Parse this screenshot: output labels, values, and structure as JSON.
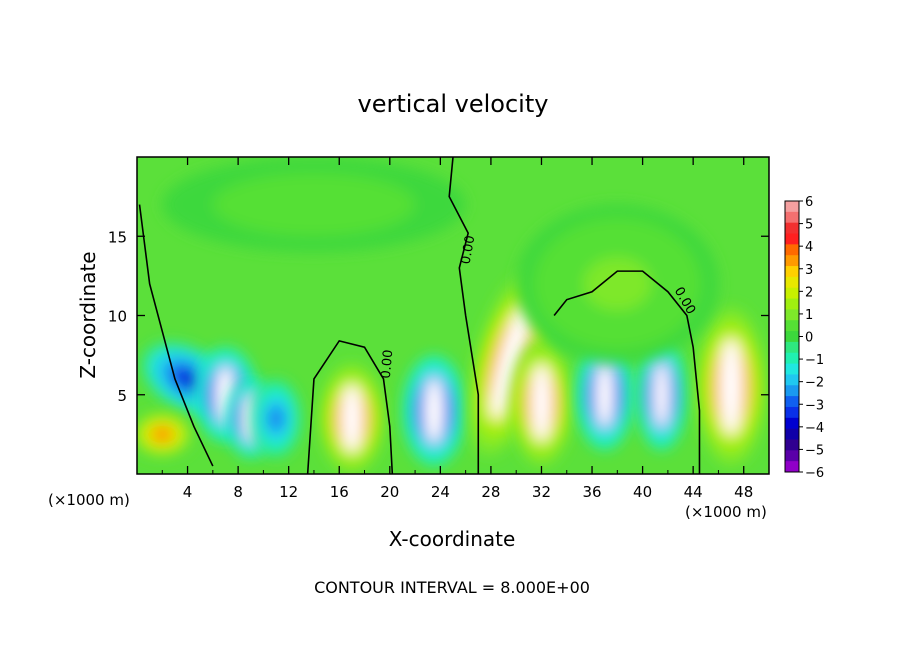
{
  "chart_data": {
    "type": "heatmap",
    "title": "vertical velocity",
    "xlabel": "X-coordinate",
    "ylabel": "Z-coordinate",
    "x_unit_label": "(×1000 m)",
    "x_ticks": [
      4,
      8,
      12,
      16,
      20,
      24,
      28,
      32,
      36,
      40,
      44,
      48
    ],
    "y_ticks": [
      5,
      10,
      15
    ],
    "xlim": [
      0,
      50
    ],
    "ylim": [
      0,
      20
    ],
    "footer": "CONTOUR INTERVAL = 8.000E+00",
    "contour_label": "0.00",
    "colorbar": {
      "ticks": [
        6,
        5,
        4,
        3,
        2,
        1,
        0,
        -1,
        -2,
        -3,
        -4,
        -5,
        -6
      ],
      "levels": [
        {
          "value": 6,
          "color": "#f4a0a0"
        },
        {
          "value": 5.5,
          "color": "#f47070"
        },
        {
          "value": 5,
          "color": "#f23030"
        },
        {
          "value": 4.5,
          "color": "#ff2020"
        },
        {
          "value": 4,
          "color": "#ff6a00"
        },
        {
          "value": 3.5,
          "color": "#ff9a00"
        },
        {
          "value": 3,
          "color": "#ffd000"
        },
        {
          "value": 2.5,
          "color": "#e8e800"
        },
        {
          "value": 2,
          "color": "#c8f000"
        },
        {
          "value": 1.5,
          "color": "#a0ef10"
        },
        {
          "value": 1,
          "color": "#7ee82a"
        },
        {
          "value": 0.5,
          "color": "#55e035"
        },
        {
          "value": 0,
          "color": "#3cd83c"
        },
        {
          "value": -0.5,
          "color": "#2ee880"
        },
        {
          "value": -1,
          "color": "#20f0b0"
        },
        {
          "value": -1.5,
          "color": "#20e8e0"
        },
        {
          "value": -2,
          "color": "#20c8f0"
        },
        {
          "value": -2.5,
          "color": "#1a9af0"
        },
        {
          "value": -3,
          "color": "#1060f0"
        },
        {
          "value": -3.5,
          "color": "#0a30e8"
        },
        {
          "value": -4,
          "color": "#0000d0"
        },
        {
          "value": -4.5,
          "color": "#1000a8"
        },
        {
          "value": -5,
          "color": "#300090"
        },
        {
          "value": -5.5,
          "color": "#5a00a8"
        },
        {
          "value": -6,
          "color": "#9000c8"
        }
      ]
    },
    "cells": [
      {
        "cx": 4,
        "cz": 6,
        "rx": 4,
        "rz": 2,
        "rot": 30,
        "w": -4
      },
      {
        "cx": 7,
        "cz": 5,
        "rx": 2.5,
        "rz": 3,
        "rot": 0,
        "w": -5
      },
      {
        "cx": 9,
        "cz": 3.5,
        "rx": 2,
        "rz": 2.5,
        "rot": 0,
        "w": -5
      },
      {
        "cx": 11,
        "cz": 3.5,
        "rx": 2,
        "rz": 2.5,
        "rot": 0,
        "w": -3
      },
      {
        "cx": 2,
        "cz": 2.5,
        "rx": 2.5,
        "rz": 1.5,
        "rot": 0,
        "w": 4
      },
      {
        "cx": 17,
        "cz": 3.5,
        "rx": 2.6,
        "rz": 3.5,
        "rot": 0,
        "w": 5
      },
      {
        "cx": 23.5,
        "cz": 4,
        "rx": 2.5,
        "rz": 3.5,
        "rot": 0,
        "w": -5
      },
      {
        "cx": 29.5,
        "cz": 7,
        "rx": 2.8,
        "rz": 6,
        "rot": 15,
        "w": 5
      },
      {
        "cx": 32,
        "cz": 4.5,
        "rx": 2.5,
        "rz": 4,
        "rot": 0,
        "w": 5
      },
      {
        "cx": 37,
        "cz": 5,
        "rx": 2.3,
        "rz": 3.5,
        "rot": 0,
        "w": -5
      },
      {
        "cx": 41.5,
        "cz": 5,
        "rx": 2,
        "rz": 3.5,
        "rot": 0,
        "w": -5
      },
      {
        "cx": 47,
        "cz": 5.5,
        "rx": 2.8,
        "rz": 5,
        "rot": 0,
        "w": 5
      },
      {
        "cx": 38,
        "cz": 12,
        "rx": 8,
        "rz": 5,
        "rot": 0,
        "w": 1
      },
      {
        "cx": 14,
        "cz": 17,
        "rx": 12,
        "rz": 3,
        "rot": 0,
        "w": 0.5
      }
    ]
  }
}
